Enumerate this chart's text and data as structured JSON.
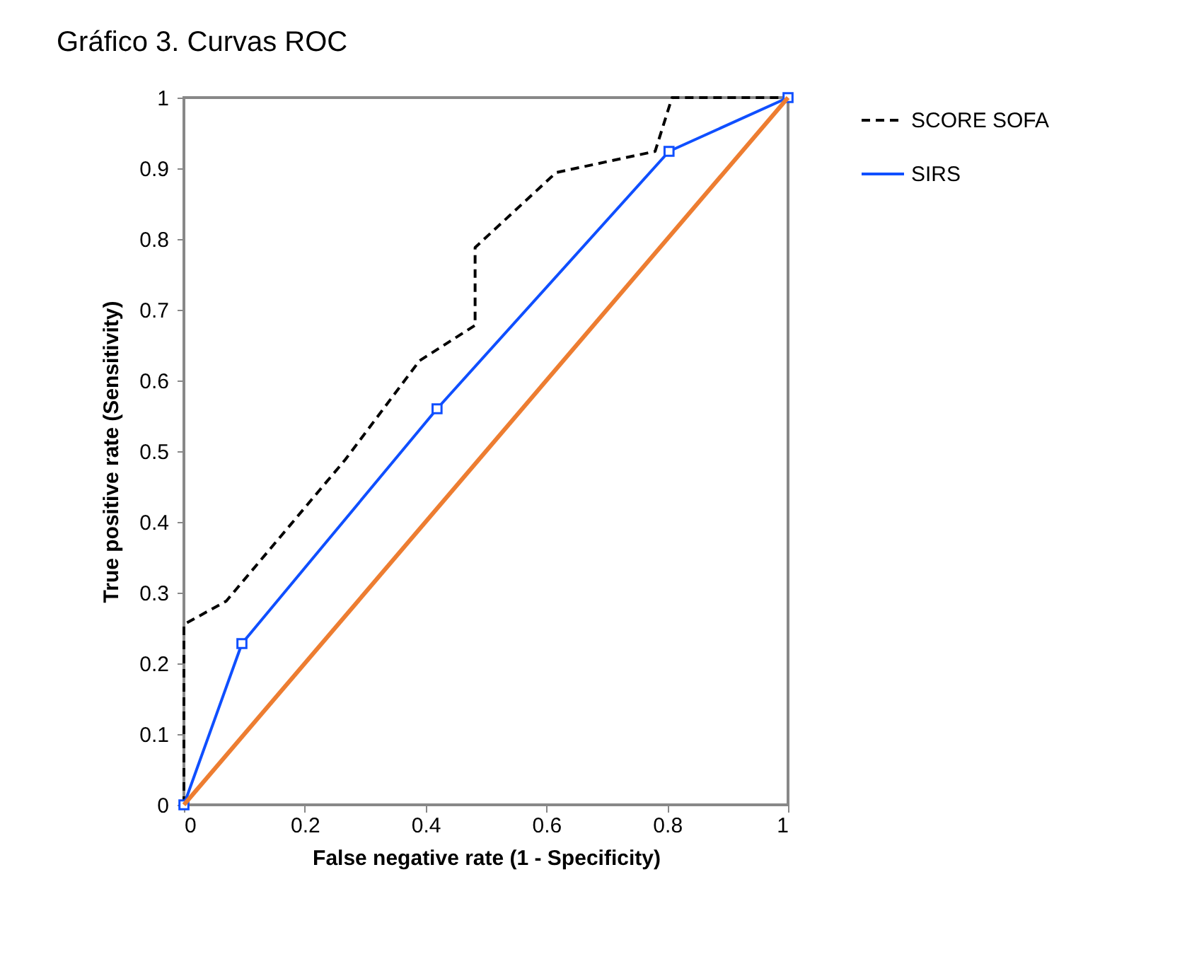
{
  "chart_data": {
    "type": "line",
    "title": "Gráfico 3. Curvas ROC",
    "xlabel": "False negative rate (1 - Specificity)",
    "ylabel": "True positive rate (Sensitivity)",
    "xlim": [
      0,
      1
    ],
    "ylim": [
      0,
      1
    ],
    "xticks": [
      0,
      {
        "value": 0.2,
        "label": "0.2"
      },
      {
        "value": 0.4,
        "label": "0.4"
      },
      {
        "value": 0.6,
        "label": "0.6"
      },
      {
        "value": 0.8,
        "label": "0.8"
      },
      1
    ],
    "yticks": [
      0,
      0.1,
      0.2,
      0.3,
      0.4,
      0.5,
      0.6,
      0.7,
      0.8,
      0.9,
      1
    ],
    "grid": false,
    "legend": "right",
    "series": [
      {
        "name": "SCORE SOFA",
        "color": "#000000",
        "line_style": "dashed",
        "marker": "none",
        "x": [
          0,
          0,
          0.07,
          0.267,
          0.39,
          0.482,
          0.482,
          0.616,
          0.78,
          0.808,
          1
        ],
        "values": [
          0,
          0.255,
          0.288,
          0.488,
          0.628,
          0.678,
          0.788,
          0.894,
          0.924,
          1,
          1
        ]
      },
      {
        "name": "SIRS",
        "color": "#0f4fff",
        "line_style": "solid",
        "marker": "square",
        "x": [
          0,
          0.096,
          0.419,
          0.803,
          1
        ],
        "values": [
          0,
          0.228,
          0.56,
          0.924,
          1
        ]
      },
      {
        "color": "#ed7d31",
        "line_style": "solid",
        "marker": "none",
        "x": [
          0,
          1
        ],
        "values": [
          0,
          1
        ]
      }
    ]
  }
}
